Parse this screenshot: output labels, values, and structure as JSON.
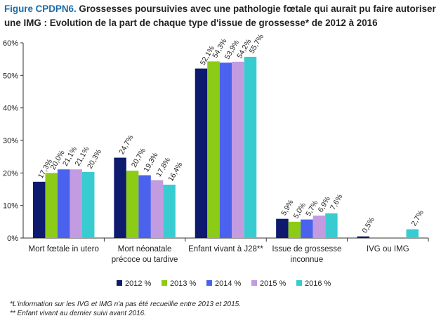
{
  "figure": {
    "tag": "Figure CPDPN6.",
    "title": "Grossesses poursuivies avec une pathologie fœtale qui aurait pu faire autoriser une IMG : Evolution de la part de chaque type d'issue de grossesse* de 2012 à 2016"
  },
  "chart_data": {
    "type": "bar",
    "title": "",
    "xlabel": "",
    "ylabel": "",
    "ylim": [
      0,
      60
    ],
    "yticks": [
      "0%",
      "10%",
      "20%",
      "30%",
      "40%",
      "50%",
      "60%"
    ],
    "grid": false,
    "legend_position": "bottom",
    "categories": [
      "Mort fœtale in utero",
      "Mort néonatale précoce ou tardive",
      "Enfant vivant à J28**",
      "Issue de grossesse inconnue",
      "IVG ou IMG"
    ],
    "series": [
      {
        "name": "2012 %",
        "color": "#0d1a6e",
        "values": [
          17.3,
          24.7,
          52.1,
          5.9,
          0.5
        ],
        "labels": [
          "17,3%",
          "24,7%",
          "52,1%",
          "5,9%",
          "0,5%"
        ]
      },
      {
        "name": "2013 %",
        "color": "#8ccc16",
        "values": [
          20.0,
          20.7,
          54.3,
          5.0,
          null
        ],
        "labels": [
          "20,0%",
          "20,7%",
          "54,3%",
          "5,0%",
          ""
        ]
      },
      {
        "name": "2014 %",
        "color": "#4a62ee",
        "values": [
          21.1,
          19.3,
          53.9,
          5.7,
          null
        ],
        "labels": [
          "21,1%",
          "19,3%",
          "53,9%",
          "5,7%",
          ""
        ]
      },
      {
        "name": "2015 %",
        "color": "#c39be0",
        "values": [
          21.1,
          17.8,
          54.2,
          6.9,
          null
        ],
        "labels": [
          "21,1%",
          "17,8%",
          "54,2%",
          "6,9%",
          ""
        ]
      },
      {
        "name": "2016 %",
        "color": "#38ccd0",
        "values": [
          20.3,
          16.4,
          55.7,
          7.6,
          2.7
        ],
        "labels": [
          "20,3%",
          "16,4%",
          "55,7%",
          "7,6%",
          "2,7%"
        ]
      }
    ]
  },
  "footnotes": {
    "note1": "*L'information sur les IVG et IMG n'a pas été recueillie entre 2013 et 2015.",
    "note2": "** Enfant vivant au dernier suivi avant 2016."
  }
}
